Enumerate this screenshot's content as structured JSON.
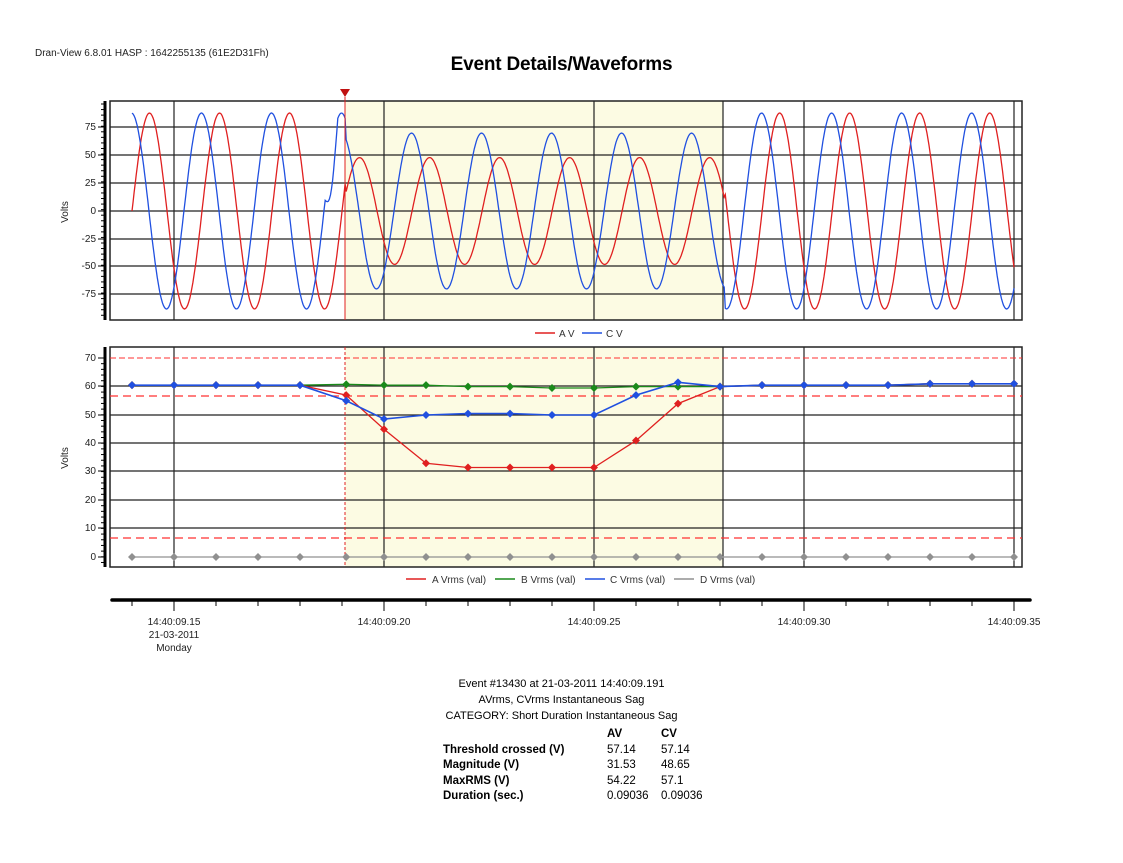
{
  "header": {
    "app_info": "Dran-View 6.8.01 HASP : 1642255135 (61E2D31Fh)",
    "title": "Event Details/Waveforms"
  },
  "colors": {
    "phase_a": "#e02020",
    "phase_b": "#1a8a1a",
    "phase_c": "#2050e0",
    "phase_d": "#909090",
    "event_region": "#fcfbe3",
    "threshold": "#ff3030",
    "event_marker": "#d01010"
  },
  "chart_data": [
    {
      "type": "line",
      "title": "Event Details/Waveforms — Instantaneous Voltage",
      "xlabel": "",
      "ylabel": "Volts",
      "ylim": [
        -95,
        95
      ],
      "yticks": [
        75,
        50,
        25,
        0,
        -25,
        -50,
        -75
      ],
      "x_unit": "ms after 14:40:09.15",
      "xlim": [
        -10,
        100
      ],
      "grid": true,
      "legend": [
        "A V",
        "C V"
      ],
      "legend_position": "bottom",
      "event_marker_ms": 41,
      "event_region_ms": [
        41,
        131
      ],
      "series": [
        {
          "name": "A V",
          "description": "Sinusoid ~88 V peak before sag; drops to ~48 V peak during sag (41–131 ms); recovers to ~88 V peak after",
          "pre_peak": 88,
          "sag_peak": 48,
          "post_peak": 88
        },
        {
          "name": "C V",
          "description": "Sinusoid ~88 V peak before sag with transient notch at onset; ~70 V peak during sag; recovers to ~88 V peak",
          "pre_peak": 88,
          "sag_peak": 70,
          "post_peak": 88
        }
      ]
    },
    {
      "type": "line",
      "title": "RMS Voltage",
      "xlabel": "",
      "ylabel": "Volts",
      "ylim": [
        -3,
        73
      ],
      "yticks": [
        70,
        60,
        50,
        40,
        30,
        20,
        10,
        0
      ],
      "x_unit": "ms after 14:40:09.15",
      "grid": true,
      "legend": [
        "A Vrms (val)",
        "B Vrms (val)",
        "C Vrms (val)",
        "D Vrms (val)"
      ],
      "legend_position": "bottom",
      "threshold_lines": [
        70,
        57.14,
        6.5
      ],
      "x": [
        -10,
        0,
        10,
        20,
        30,
        41,
        50,
        60,
        70,
        80,
        90,
        100,
        110,
        120,
        130,
        140,
        150,
        160,
        170,
        180,
        190,
        200
      ],
      "series": [
        {
          "name": "A Vrms (val)",
          "values": [
            60.5,
            60.5,
            60.5,
            60.5,
            60.5,
            57,
            45,
            33,
            31.5,
            31.5,
            31.5,
            31.5,
            41,
            54,
            60,
            60.5,
            60.5,
            60.5,
            60.5,
            61,
            61,
            61
          ]
        },
        {
          "name": "B Vrms (val)",
          "values": [
            60.5,
            60.5,
            60.5,
            60.5,
            60.5,
            60.8,
            60.5,
            60.5,
            60,
            60,
            59.5,
            59.5,
            60,
            60,
            60,
            60.5,
            60.5,
            60.5,
            60.5,
            61,
            61,
            61
          ]
        },
        {
          "name": "C Vrms (val)",
          "values": [
            60.5,
            60.5,
            60.5,
            60.5,
            60.5,
            55,
            48.6,
            50,
            50.5,
            50.5,
            50,
            50,
            57,
            61.5,
            60,
            60.5,
            60.5,
            60.5,
            60.5,
            61,
            61,
            61
          ]
        },
        {
          "name": "D Vrms (val)",
          "values": [
            0,
            0,
            0,
            0,
            0,
            0,
            0,
            0,
            0,
            0,
            0,
            0,
            0,
            0,
            0,
            0,
            0,
            0,
            0,
            0,
            0,
            0
          ]
        }
      ]
    }
  ],
  "top_chart": {
    "ylabel": "Volts",
    "yticks": [
      "75",
      "50",
      "25",
      "0",
      "-25",
      "-50",
      "-75"
    ],
    "legend": {
      "a": "A V",
      "c": "C V"
    }
  },
  "bottom_chart": {
    "ylabel": "Volts",
    "yticks": [
      "70",
      "60",
      "50",
      "40",
      "30",
      "20",
      "10",
      "0"
    ],
    "legend": {
      "a": "A Vrms (val)",
      "b": "B Vrms (val)",
      "c": "C Vrms (val)",
      "d": "D Vrms (val)"
    }
  },
  "time_axis": {
    "labels": [
      {
        "time": "14:40:09.15",
        "date": "21-03-2011",
        "day": "Monday"
      },
      {
        "time": "14:40:09.20"
      },
      {
        "time": "14:40:09.25"
      },
      {
        "time": "14:40:09.30"
      },
      {
        "time": "14:40:09.35"
      }
    ]
  },
  "event": {
    "line1": "Event #13430 at 21-03-2011 14:40:09.191",
    "line2": "AVrms, CVrms Instantaneous Sag",
    "line3": "CATEGORY: Short Duration Instantaneous Sag",
    "table": {
      "headers": [
        "",
        "AV",
        "CV"
      ],
      "rows": [
        {
          "label": "Threshold crossed (V)",
          "av": "57.14",
          "cv": "57.14"
        },
        {
          "label": "Magnitude (V)",
          "av": "31.53",
          "cv": "48.65"
        },
        {
          "label": "MaxRMS (V)",
          "av": "54.22",
          "cv": "57.1"
        },
        {
          "label": "Duration (sec.)",
          "av": "0.09036",
          "cv": "0.09036"
        }
      ]
    }
  }
}
